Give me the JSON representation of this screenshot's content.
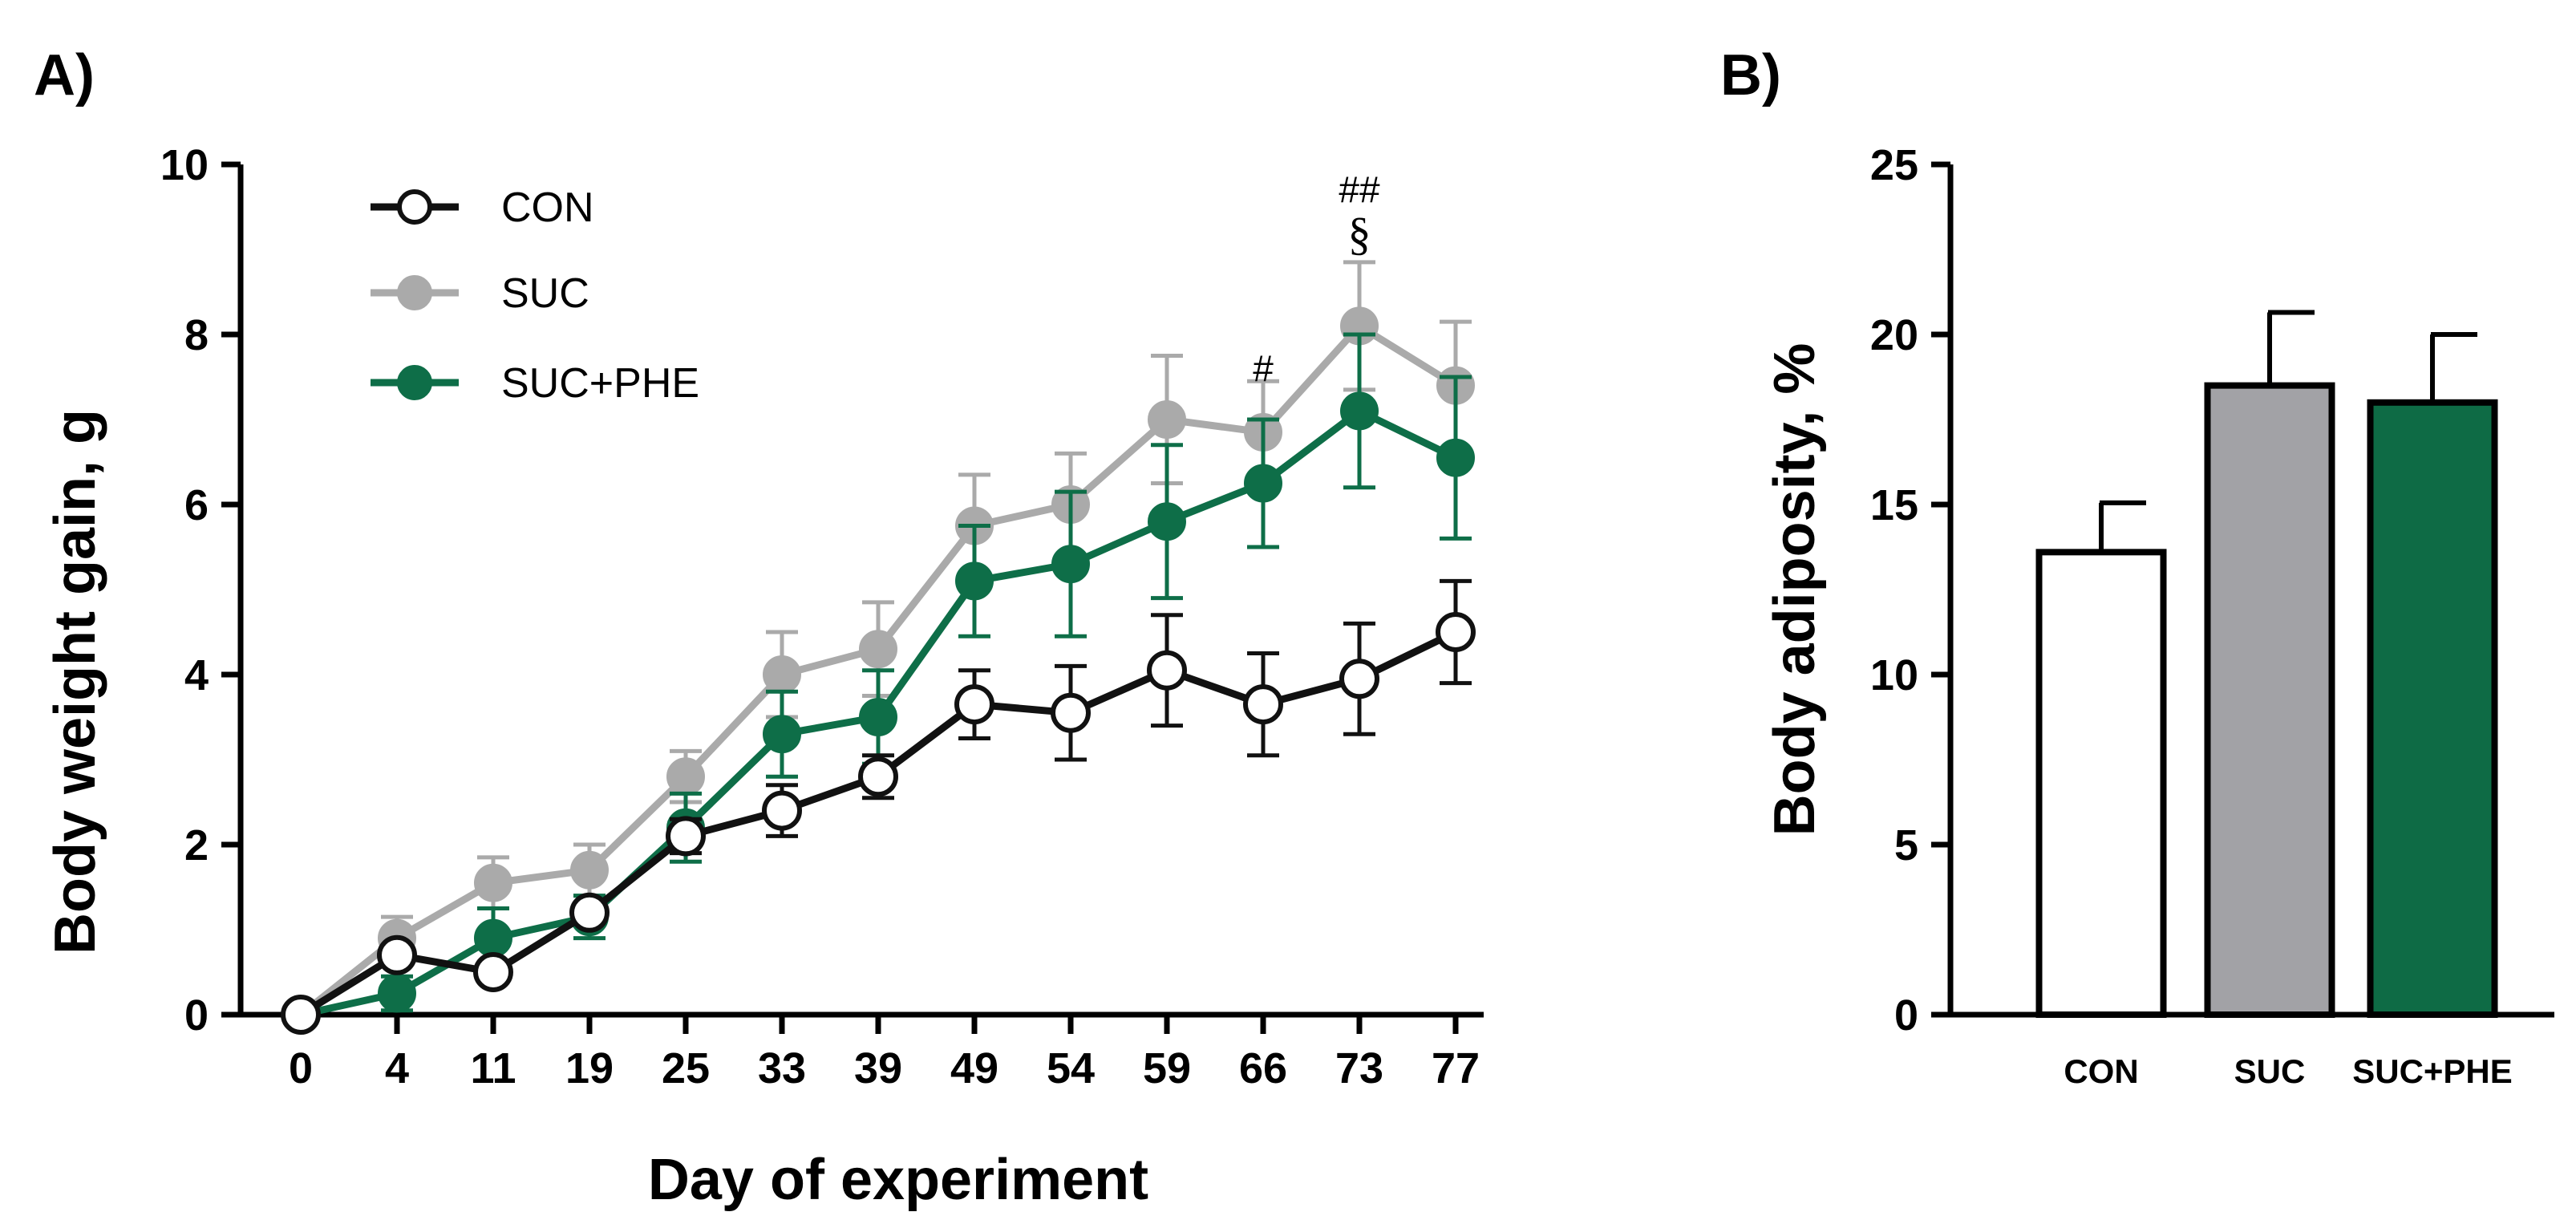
{
  "chart_data": [
    {
      "panel_label": "A)",
      "type": "line",
      "xlabel": "Day of experiment",
      "ylabel": "Body weight gain, g",
      "categories": [
        "0",
        "4",
        "11",
        "19",
        "25",
        "33",
        "39",
        "49",
        "54",
        "59",
        "66",
        "73",
        "77"
      ],
      "ylim": [
        0,
        10
      ],
      "yticks": [
        "0",
        "2",
        "4",
        "6",
        "8",
        "10"
      ],
      "legend_position": "top-left",
      "grid": false,
      "series": [
        {
          "name": "CON",
          "marker": "open-circle",
          "color": "#111111",
          "values": [
            0,
            0.7,
            0.5,
            1.2,
            2.1,
            2.4,
            2.8,
            3.65,
            3.55,
            4.05,
            3.65,
            3.95,
            4.5
          ],
          "errors": [
            0,
            0.1,
            0.1,
            0.1,
            0.2,
            0.3,
            0.25,
            0.4,
            0.55,
            0.65,
            0.6,
            0.65,
            0.6
          ]
        },
        {
          "name": "SUC",
          "marker": "filled-circle",
          "color": "#aaaaaa",
          "values": [
            0,
            0.9,
            1.55,
            1.7,
            2.8,
            4.0,
            4.3,
            5.75,
            6.0,
            7.0,
            6.85,
            8.1,
            7.4
          ],
          "errors": [
            0,
            0.25,
            0.3,
            0.3,
            0.3,
            0.5,
            0.55,
            0.6,
            0.6,
            0.75,
            0.6,
            0.75,
            0.75
          ]
        },
        {
          "name": "SUC+PHE",
          "marker": "filled-circle",
          "color": "#0e6e48",
          "values": [
            0,
            0.25,
            0.9,
            1.15,
            2.2,
            3.3,
            3.5,
            5.1,
            5.3,
            5.8,
            6.25,
            7.1,
            6.55
          ],
          "errors": [
            0,
            0.2,
            0.35,
            0.25,
            0.4,
            0.5,
            0.55,
            0.65,
            0.85,
            0.9,
            0.75,
            0.9,
            0.95
          ]
        }
      ],
      "annotations": [
        {
          "text": "#",
          "category": "66",
          "above": 7.45
        },
        {
          "text": "##",
          "category": "73",
          "above": 9.55
        },
        {
          "text": "§",
          "category": "73",
          "above": 9.0
        }
      ]
    },
    {
      "panel_label": "B)",
      "type": "bar",
      "ylabel": "Body adiposity, %",
      "categories": [
        "CON",
        "SUC",
        "SUC+PHE"
      ],
      "values": [
        13.6,
        18.5,
        18.0
      ],
      "errors": [
        1.45,
        2.15,
        2.0
      ],
      "colors": [
        "#ffffff",
        "#a2a2a6",
        "#0e6b45"
      ],
      "ylim": [
        0,
        25
      ],
      "yticks": [
        "0",
        "5",
        "10",
        "15",
        "20",
        "25"
      ],
      "grid": false
    }
  ]
}
